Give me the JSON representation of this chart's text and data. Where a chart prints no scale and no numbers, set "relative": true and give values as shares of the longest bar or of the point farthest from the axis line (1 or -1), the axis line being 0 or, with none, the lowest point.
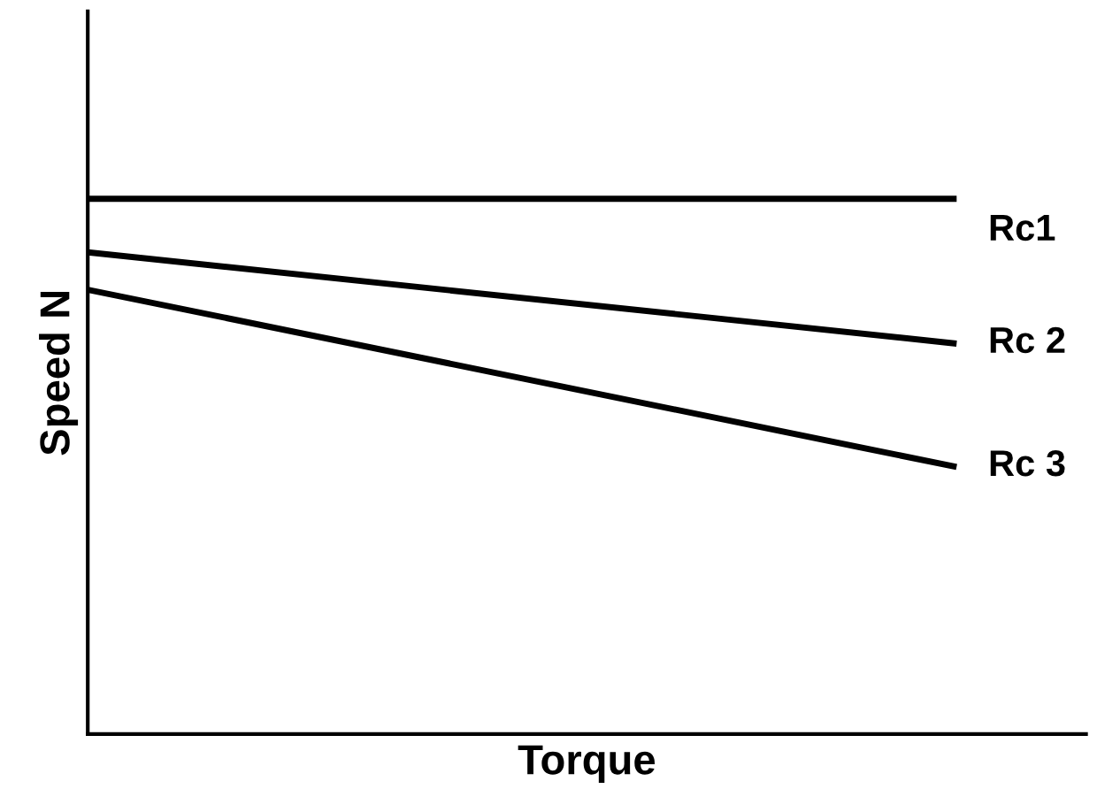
{
  "chart_data": {
    "type": "line",
    "relative": true,
    "xlabel": "Torque",
    "ylabel": "Speed N",
    "categories": [
      null,
      null
    ],
    "legend": false,
    "marker": "none",
    "line_style": "solid",
    "series": [
      {
        "name": "Rc1",
        "color": "#000000",
        "values": [
          1,
          1
        ]
      },
      {
        "name": "Rc 2",
        "color": "#000000",
        "values": [
          0.9,
          0.73
        ]
      },
      {
        "name": "Rc 3",
        "color": "#000000",
        "values": [
          0.83,
          0.5
        ]
      }
    ]
  }
}
